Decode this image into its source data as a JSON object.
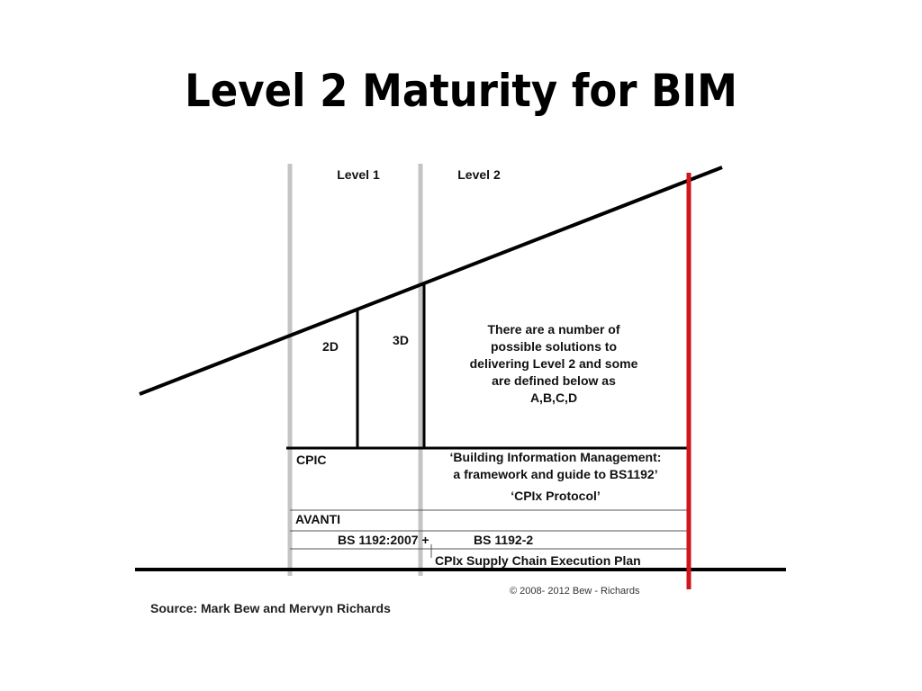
{
  "title": "Level 2 Maturity for BIM",
  "diagram": {
    "levels": [
      "Level 1",
      "Level 2"
    ],
    "stages": [
      "2D",
      "3D"
    ],
    "callout": [
      "There are a number of",
      "possible solutions to",
      "delivering Level 2 and some",
      "are defined below as",
      "A,B,C,D"
    ],
    "rows": {
      "cpic": "CPIC",
      "bim_framework": [
        "‘Building Information Management:",
        "a framework and guide to BS1192’"
      ],
      "cpix_protocol": "‘CPIx Protocol’",
      "avanti": "AVANTI",
      "bs1192_2007": "BS 1192:2007 +",
      "bs1192_2": "BS 1192-2",
      "cpix_plan": "CPIx Supply Chain Execution Plan"
    },
    "copyright": "©  2008- 2012 Bew - Richards",
    "source": "Source: Mark Bew and Mervyn Richards"
  }
}
